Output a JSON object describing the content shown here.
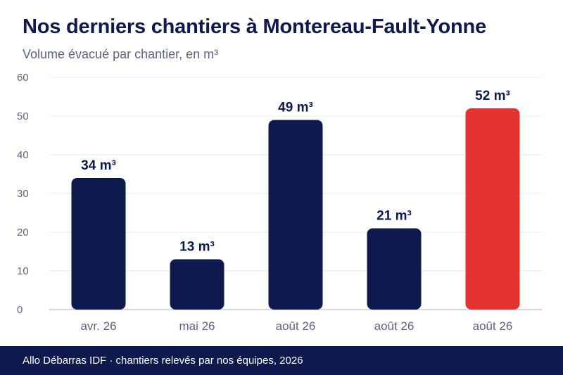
{
  "header": {
    "title": "Nos derniers chantiers à Montereau-Fault-Yonne",
    "subtitle": "Volume évacué par chantier, en m³"
  },
  "footer": {
    "text": "Allo Débarras IDF · chantiers relevés par nos équipes, 2026"
  },
  "colors": {
    "bar": "#0e1a4d",
    "highlight": "#e3322f",
    "grid": "#e6e8ee",
    "axis": "#c9cbd8",
    "tick": "#5b6486",
    "label": "#0e1a4d"
  },
  "chart_data": {
    "type": "bar",
    "categories": [
      "avr. 26",
      "mai 26",
      "août 26",
      "août 26",
      "août 26"
    ],
    "values": [
      34,
      13,
      49,
      21,
      52
    ],
    "value_labels": [
      "34 m³",
      "13 m³",
      "49 m³",
      "21 m³",
      "52 m³"
    ],
    "highlight_index": 4,
    "ylim": [
      0,
      60
    ],
    "yticks": [
      "0",
      "10",
      "20",
      "30",
      "40",
      "50",
      "60"
    ],
    "grid": true,
    "xlabel": "",
    "ylabel": ""
  }
}
